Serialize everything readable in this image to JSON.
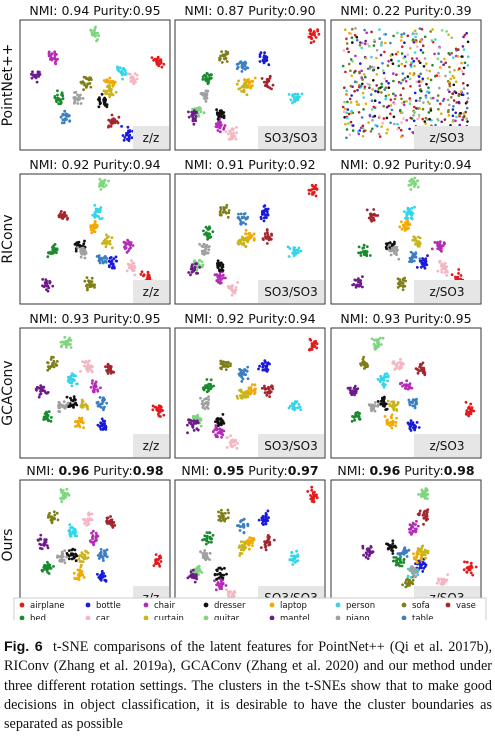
{
  "figure": {
    "rows": [
      {
        "label": "PointNet++",
        "panels": [
          {
            "nmi_label": "NMI:",
            "nmi": "0.94",
            "purity_label": "Purity:",
            "purity": "0.95",
            "best": false,
            "rotation": "z/z"
          },
          {
            "nmi_label": "NMI:",
            "nmi": "0.87",
            "purity_label": "Purity:",
            "purity": "0.90",
            "best": false,
            "rotation": "SO3/SO3"
          },
          {
            "nmi_label": "NMI:",
            "nmi": "0.22",
            "purity_label": "Purity:",
            "purity": "0.39",
            "best": false,
            "rotation": "z/SO3"
          }
        ]
      },
      {
        "label": "RIConv",
        "panels": [
          {
            "nmi_label": "NMI:",
            "nmi": "0.92",
            "purity_label": "Purity:",
            "purity": "0.94",
            "best": false,
            "rotation": "z/z"
          },
          {
            "nmi_label": "NMI:",
            "nmi": "0.91",
            "purity_label": "Purity:",
            "purity": "0.92",
            "best": false,
            "rotation": "SO3/SO3"
          },
          {
            "nmi_label": "NMI:",
            "nmi": "0.92",
            "purity_label": "Purity:",
            "purity": "0.94",
            "best": false,
            "rotation": "z/SO3"
          }
        ]
      },
      {
        "label": "GCAConv",
        "panels": [
          {
            "nmi_label": "NMI:",
            "nmi": "0.93",
            "purity_label": "Purity:",
            "purity": "0.95",
            "best": false,
            "rotation": "z/z"
          },
          {
            "nmi_label": "NMI:",
            "nmi": "0.92",
            "purity_label": "Purity:",
            "purity": "0.94",
            "best": false,
            "rotation": "SO3/SO3"
          },
          {
            "nmi_label": "NMI:",
            "nmi": "0.93",
            "purity_label": "Purity:",
            "purity": "0.95",
            "best": false,
            "rotation": "z/SO3"
          }
        ]
      },
      {
        "label": "Ours",
        "panels": [
          {
            "nmi_label": "NMI:",
            "nmi": "0.96",
            "purity_label": "Purity:",
            "purity": "0.98",
            "best": true,
            "rotation": "z/z"
          },
          {
            "nmi_label": "NMI:",
            "nmi": "0.95",
            "purity_label": "Purity:",
            "purity": "0.97",
            "best": true,
            "rotation": "SO3/SO3"
          },
          {
            "nmi_label": "NMI:",
            "nmi": "0.96",
            "purity_label": "Purity:",
            "purity": "0.98",
            "best": true,
            "rotation": "z/SO3"
          }
        ]
      }
    ],
    "legend": [
      {
        "name": "airplane",
        "color": "#e41a1c"
      },
      {
        "name": "bottle",
        "color": "#1a1adb"
      },
      {
        "name": "chair",
        "color": "#b52bb8"
      },
      {
        "name": "dresser",
        "color": "#111111"
      },
      {
        "name": "laptop",
        "color": "#f2a900"
      },
      {
        "name": "person",
        "color": "#33d6e8"
      },
      {
        "name": "sofa",
        "color": "#7f7f1a"
      },
      {
        "name": "vase",
        "color": "#a3262e"
      },
      {
        "name": "bed",
        "color": "#1a8a2e"
      },
      {
        "name": "car",
        "color": "#f4b6c2"
      },
      {
        "name": "curtain",
        "color": "#c9b41b"
      },
      {
        "name": "guitar",
        "color": "#7fd67f"
      },
      {
        "name": "mantel",
        "color": "#6e1a8a"
      },
      {
        "name": "piano",
        "color": "#a0a0a0"
      },
      {
        "name": "table",
        "color": "#3c7fc1"
      }
    ]
  },
  "caption": {
    "label": "Fig. 6",
    "text": "t-SNE comparisons of the latent features for PointNet++ (Qi et al. 2017b), RIConv (Zhang et al. 2019a), GCAConv (Zhang et al. 2020) and our method under three different rotation settings. The clusters in the t-SNEs show that to make good decisions in object classification, it is desirable to have the cluster boundaries as separated as possible"
  }
}
